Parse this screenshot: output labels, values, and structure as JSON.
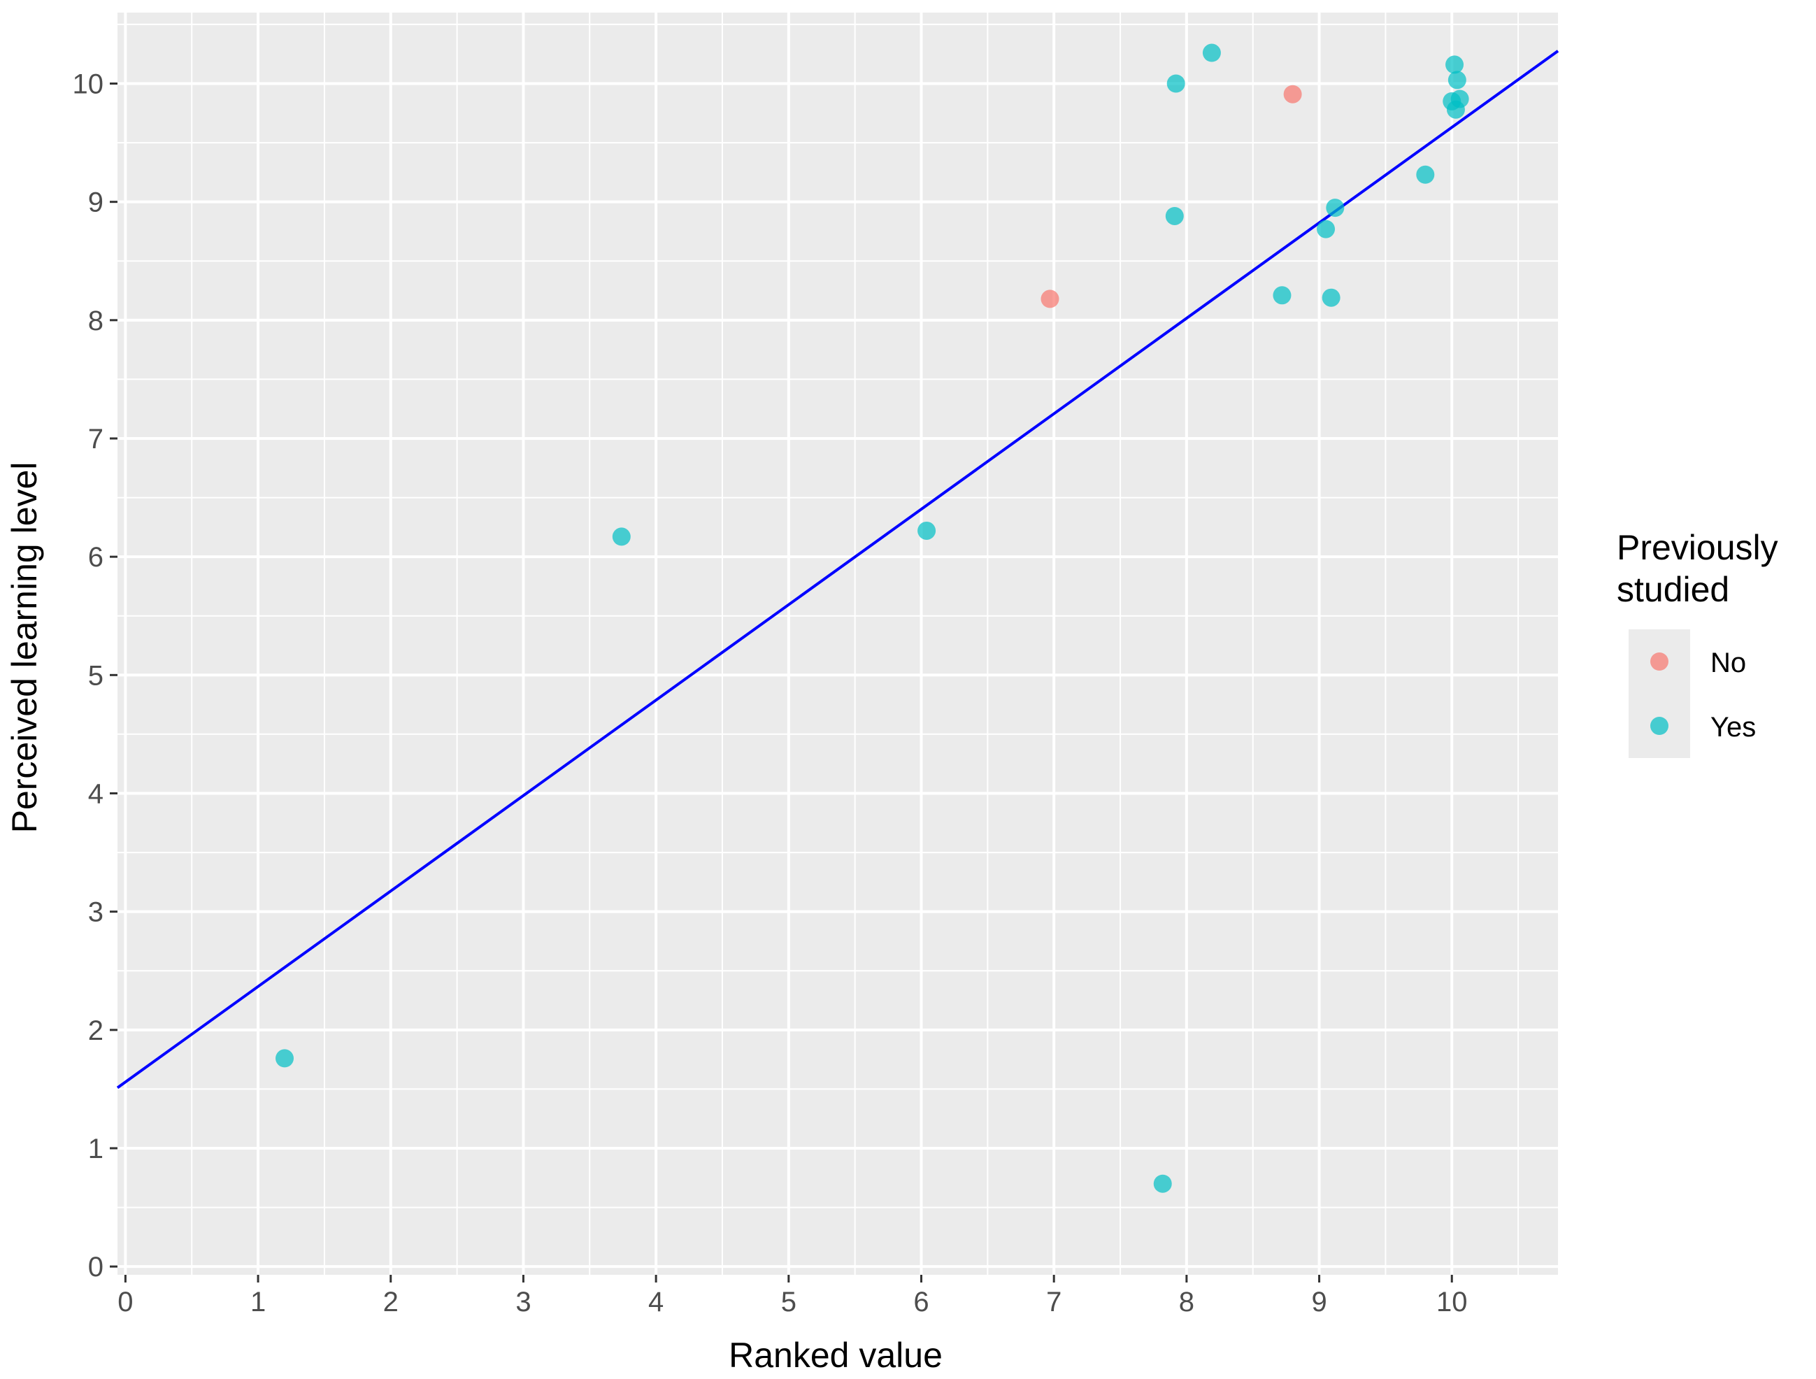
{
  "chart_data": {
    "type": "scatter",
    "xlabel": "Ranked value",
    "ylabel": "Perceived learning level",
    "xlim": [
      -0.06,
      10.8
    ],
    "ylim": [
      -0.07,
      10.6
    ],
    "x_ticks": [
      0,
      1,
      2,
      3,
      4,
      5,
      6,
      7,
      8,
      9,
      10
    ],
    "y_ticks": [
      0,
      1,
      2,
      3,
      4,
      5,
      6,
      7,
      8,
      9,
      10
    ],
    "x_tick_labels": [
      "0",
      "1",
      "2",
      "3",
      "4",
      "5",
      "6",
      "7",
      "8",
      "9",
      "10"
    ],
    "y_tick_labels": [
      "0",
      "1",
      "2",
      "3",
      "4",
      "5",
      "6",
      "7",
      "8",
      "9",
      "10"
    ],
    "grid": true,
    "legend": {
      "title": "Previously\nstudied",
      "title_lines": [
        "Previously",
        "studied"
      ],
      "placement": "right",
      "entries": [
        {
          "label": "No",
          "color": "#F8766D"
        },
        {
          "label": "Yes",
          "color": "#00BFC4"
        }
      ]
    },
    "series": [
      {
        "name": "No",
        "color": "#F8766D",
        "points": [
          {
            "x": 6.97,
            "y": 8.18
          },
          {
            "x": 8.8,
            "y": 9.91
          }
        ]
      },
      {
        "name": "Yes",
        "color": "#00BFC4",
        "points": [
          {
            "x": 1.2,
            "y": 1.76
          },
          {
            "x": 3.74,
            "y": 6.17
          },
          {
            "x": 6.04,
            "y": 6.22
          },
          {
            "x": 7.82,
            "y": 0.7
          },
          {
            "x": 7.91,
            "y": 8.88
          },
          {
            "x": 7.92,
            "y": 10.0
          },
          {
            "x": 8.19,
            "y": 10.26
          },
          {
            "x": 8.72,
            "y": 8.21
          },
          {
            "x": 9.05,
            "y": 8.77
          },
          {
            "x": 9.09,
            "y": 8.19
          },
          {
            "x": 9.12,
            "y": 8.95
          },
          {
            "x": 9.8,
            "y": 9.23
          },
          {
            "x": 10.0,
            "y": 9.85
          },
          {
            "x": 10.02,
            "y": 10.16
          },
          {
            "x": 10.03,
            "y": 9.78
          },
          {
            "x": 10.04,
            "y": 10.03
          },
          {
            "x": 10.06,
            "y": 9.87
          }
        ]
      }
    ],
    "fit_line": {
      "color": "#0000FF",
      "intercept": 1.56,
      "slope": 0.807
    }
  },
  "colors": {
    "panel_background": "#EBEBEB",
    "grid_line": "#FFFFFF",
    "fit_line": "#0000FF"
  }
}
